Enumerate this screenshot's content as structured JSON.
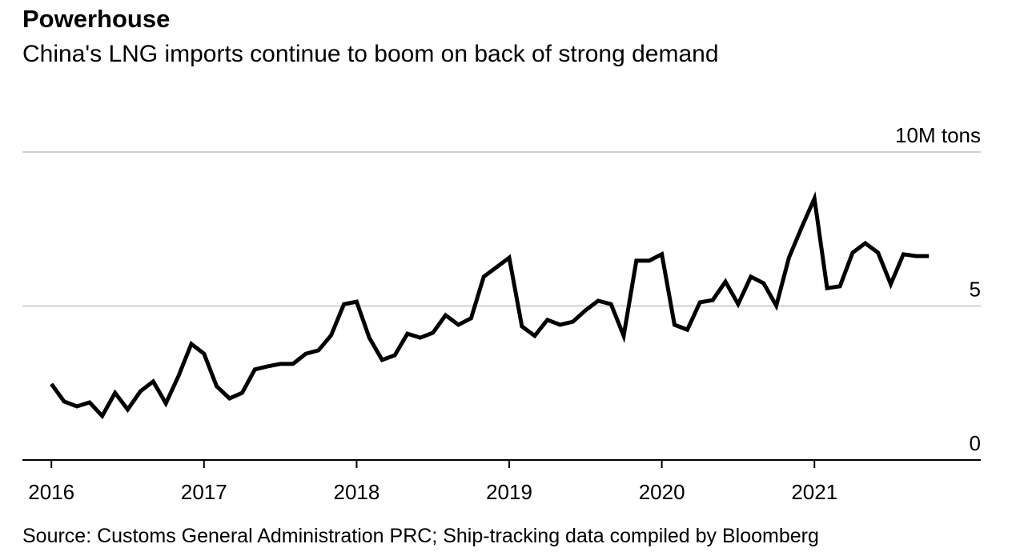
{
  "chart_data": {
    "type": "line",
    "title": "Powerhouse",
    "subtitle": "China's LNG imports continue to boom on back of strong demand",
    "source": "Source: Customs General Administration PRC; Ship-tracking data compiled by Bloomberg",
    "x": [
      2016.0,
      2016.083,
      2016.167,
      2016.25,
      2016.333,
      2016.417,
      2016.5,
      2016.583,
      2016.667,
      2016.75,
      2016.833,
      2016.917,
      2017.0,
      2017.083,
      2017.167,
      2017.25,
      2017.333,
      2017.417,
      2017.5,
      2017.583,
      2017.667,
      2017.75,
      2017.833,
      2017.917,
      2018.0,
      2018.083,
      2018.167,
      2018.25,
      2018.333,
      2018.417,
      2018.5,
      2018.583,
      2018.667,
      2018.75,
      2018.833,
      2018.917,
      2019.0,
      2019.083,
      2019.167,
      2019.25,
      2019.333,
      2019.417,
      2019.5,
      2019.583,
      2019.667,
      2019.75,
      2019.833,
      2019.917,
      2020.0,
      2020.083,
      2020.167,
      2020.25,
      2020.333,
      2020.417,
      2020.5,
      2020.583,
      2020.667,
      2020.75,
      2020.833,
      2020.917,
      2021.0,
      2021.083,
      2021.167,
      2021.25,
      2021.333,
      2021.417,
      2021.5,
      2021.583,
      2021.667,
      2021.75
    ],
    "series": [
      {
        "name": "LNG imports",
        "color": "#000000",
        "values": [
          2.47,
          1.9,
          1.74,
          1.87,
          1.43,
          2.18,
          1.64,
          2.23,
          2.55,
          1.84,
          2.73,
          3.77,
          3.45,
          2.39,
          2.0,
          2.18,
          2.94,
          3.04,
          3.12,
          3.12,
          3.45,
          3.56,
          4.05,
          5.06,
          5.14,
          3.97,
          3.25,
          3.4,
          4.1,
          3.97,
          4.13,
          4.7,
          4.39,
          4.6,
          5.95,
          6.26,
          6.57,
          4.34,
          4.03,
          4.55,
          4.39,
          4.49,
          4.86,
          5.17,
          5.06,
          4.03,
          6.47,
          6.47,
          6.68,
          4.39,
          4.23,
          5.12,
          5.19,
          5.79,
          5.06,
          5.95,
          5.74,
          5.01,
          6.57,
          7.56,
          8.49,
          5.58,
          5.64,
          6.73,
          7.04,
          6.73,
          5.71,
          6.68,
          6.62,
          6.62
        ]
      }
    ],
    "xlim": [
      2015.81,
      2022.09
    ],
    "xticks": [
      2016,
      2017,
      2018,
      2019,
      2020,
      2021
    ],
    "ylim": [
      0,
      10
    ],
    "yticks": [
      0,
      5,
      {
        "value": 10,
        "label": "10M tons"
      }
    ],
    "grid": true
  }
}
